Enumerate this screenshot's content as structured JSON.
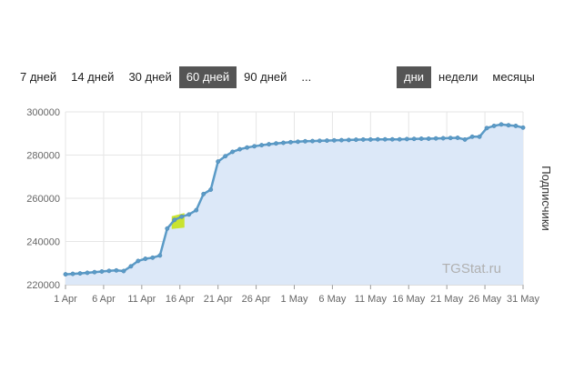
{
  "range_tabs": [
    {
      "label": "7 дней",
      "active": false
    },
    {
      "label": "14 дней",
      "active": false
    },
    {
      "label": "30 дней",
      "active": false
    },
    {
      "label": "60 дней",
      "active": true
    },
    {
      "label": "90 дней",
      "active": false
    },
    {
      "label": "...",
      "active": false
    }
  ],
  "period_tabs": [
    {
      "label": "дни",
      "active": true
    },
    {
      "label": "недели",
      "active": false
    },
    {
      "label": "месяцы",
      "active": false
    }
  ],
  "watermark": "TGStat.ru",
  "colors": {
    "line": "#5b9bc7",
    "area": "#dce8f8",
    "highlight": "#c6e21a",
    "grid": "#e6e6e6",
    "active_tab": "#555555"
  },
  "chart_data": {
    "type": "area",
    "ylabel": "Подписчики",
    "ylim": [
      220000,
      300000
    ],
    "y_ticks": [
      "220000",
      "240000",
      "260000",
      "280000",
      "300000"
    ],
    "y_tick_values": [
      220000,
      240000,
      260000,
      280000,
      300000
    ],
    "x_tick_labels": [
      "1 Apr",
      "6 Apr",
      "11 Apr",
      "16 Apr",
      "21 Apr",
      "26 Apr",
      "1 May",
      "6 May",
      "11 May",
      "16 May",
      "21 May",
      "26 May",
      "31 May"
    ],
    "x_tick_days": [
      0,
      5,
      10,
      15,
      20,
      25,
      30,
      35,
      40,
      45,
      50,
      55,
      60
    ],
    "highlight_range_days": [
      14,
      15
    ],
    "grid": true,
    "series": [
      {
        "values": [
          224800,
          225000,
          225200,
          225500,
          225800,
          226100,
          226400,
          226600,
          226300,
          228500,
          231000,
          232000,
          232500,
          233500,
          246000,
          250000,
          251500,
          252500,
          254500,
          262000,
          264000,
          277000,
          279500,
          281500,
          282700,
          283500,
          284100,
          284600,
          285000,
          285400,
          285700,
          286000,
          286200,
          286400,
          286500,
          286600,
          286700,
          286800,
          286900,
          287000,
          287100,
          287200,
          287200,
          287300,
          287300,
          287300,
          287300,
          287400,
          287500,
          287600,
          287600,
          287700,
          287800,
          287900,
          288000,
          287200,
          288500,
          288500,
          292500,
          293500,
          294200,
          293800,
          293500,
          292700
        ]
      }
    ]
  }
}
